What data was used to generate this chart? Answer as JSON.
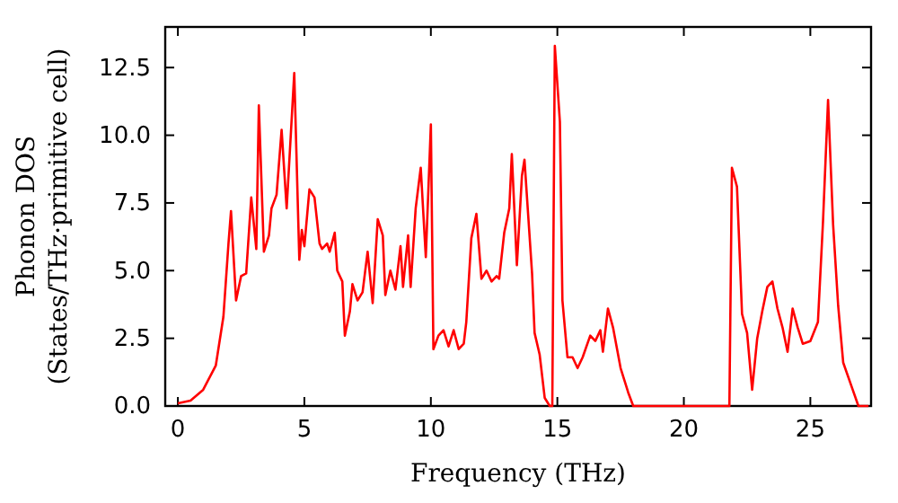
{
  "chart_data": {
    "type": "line",
    "xlabel": "Frequency (THz)",
    "ylabel": "Phonon DOS\n(States/THz·primitive cell)",
    "xlim": [
      -0.5,
      27.4
    ],
    "ylim": [
      0,
      14
    ],
    "xticks": [
      0,
      5,
      10,
      15,
      20,
      25
    ],
    "yticks": [
      {
        "value": 0,
        "label": "0.0"
      },
      2.5,
      {
        "value": 5,
        "label": "5.0"
      },
      7.5,
      {
        "value": 10,
        "label": "10.0"
      },
      12.5
    ],
    "marker": "none",
    "line_style": "solid",
    "series": [
      {
        "color": "#ff0000",
        "x": [
          0,
          0.5,
          1,
          1.5,
          1.8,
          2.0,
          2.1,
          2.3,
          2.5,
          2.7,
          2.9,
          3.1,
          3.2,
          3.4,
          3.6,
          3.7,
          3.9,
          4.1,
          4.3,
          4.6,
          4.8,
          4.9,
          5.0,
          5.2,
          5.4,
          5.6,
          5.7,
          5.9,
          6.0,
          6.2,
          6.3,
          6.5,
          6.6,
          6.8,
          6.9,
          7.1,
          7.3,
          7.5,
          7.7,
          7.9,
          8.1,
          8.2,
          8.4,
          8.6,
          8.8,
          8.9,
          9.1,
          9.2,
          9.4,
          9.6,
          9.8,
          10.0,
          10.1,
          10.3,
          10.5,
          10.7,
          10.9,
          11.1,
          11.3,
          11.4,
          11.6,
          11.8,
          12.0,
          12.2,
          12.4,
          12.6,
          12.7,
          12.9,
          13.1,
          13.2,
          13.4,
          13.6,
          13.7,
          14.0,
          14.1,
          14.3,
          14.5,
          14.7,
          14.8,
          14.9,
          15.1,
          15.2,
          15.4,
          15.6,
          15.8,
          16.0,
          16.3,
          16.5,
          16.7,
          16.8,
          17.0,
          17.2,
          17.5,
          17.8,
          18.0,
          21.8,
          21.9,
          22.1,
          22.3,
          22.5,
          22.7,
          22.9,
          23.1,
          23.3,
          23.5,
          23.7,
          23.9,
          24.1,
          24.3,
          24.5,
          24.7,
          25.0,
          25.3,
          25.5,
          25.7,
          25.9,
          26.1,
          26.3,
          26.6,
          26.9,
          27.3
        ],
        "values": [
          0.1,
          0.2,
          0.6,
          1.5,
          3.3,
          6.0,
          7.2,
          3.9,
          4.8,
          4.9,
          7.7,
          5.8,
          11.1,
          5.7,
          6.3,
          7.3,
          7.8,
          10.2,
          7.3,
          12.3,
          5.4,
          6.5,
          5.9,
          8.0,
          7.7,
          6.0,
          5.8,
          6.0,
          5.7,
          6.4,
          5.0,
          4.6,
          2.6,
          3.5,
          4.5,
          3.9,
          4.2,
          5.7,
          3.8,
          6.9,
          6.3,
          4.1,
          5.0,
          4.3,
          5.9,
          4.4,
          6.3,
          4.4,
          7.3,
          8.8,
          5.5,
          10.4,
          2.1,
          2.6,
          2.8,
          2.2,
          2.8,
          2.1,
          2.3,
          3.1,
          6.2,
          7.1,
          4.7,
          5.0,
          4.6,
          4.8,
          4.7,
          6.4,
          7.3,
          9.3,
          5.2,
          8.5,
          9.1,
          4.9,
          2.7,
          1.9,
          0.3,
          0,
          0,
          13.3,
          10.5,
          3.9,
          1.8,
          1.8,
          1.4,
          1.8,
          2.6,
          2.4,
          2.8,
          2.0,
          3.6,
          2.9,
          1.4,
          0.5,
          0,
          0,
          8.8,
          8.1,
          3.4,
          2.7,
          0.6,
          2.5,
          3.5,
          4.4,
          4.6,
          3.6,
          2.9,
          2.0,
          3.6,
          2.9,
          2.3,
          2.4,
          3.1,
          6.8,
          11.3,
          6.7,
          3.7,
          1.6,
          0.8,
          0,
          0
        ]
      }
    ]
  }
}
